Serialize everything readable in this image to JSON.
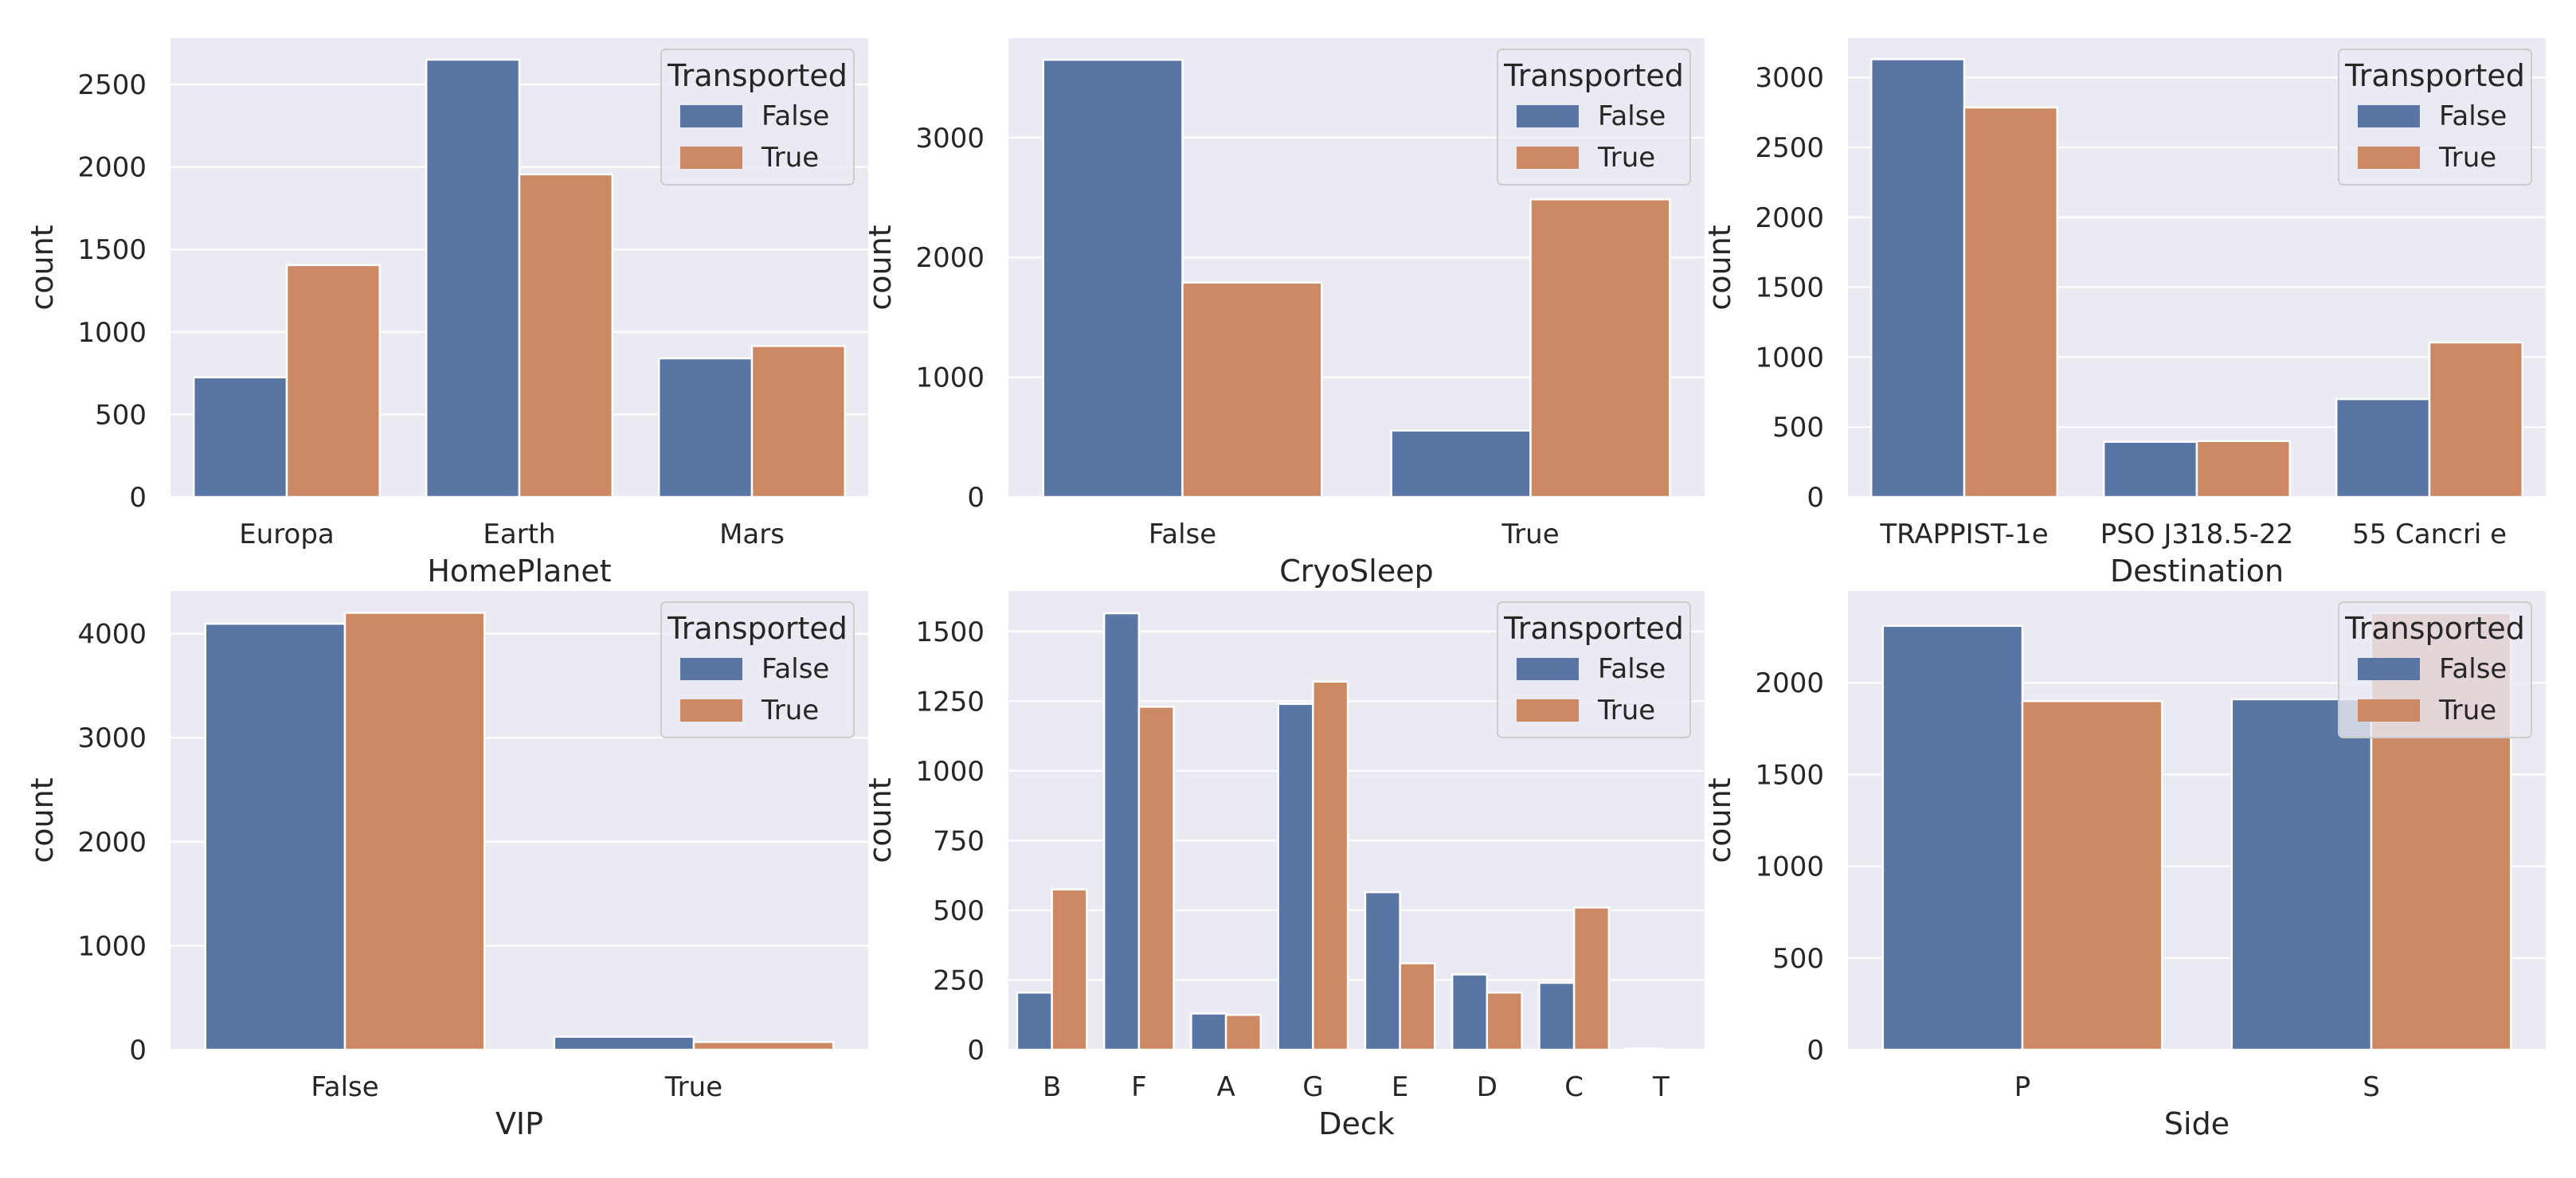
{
  "colors": {
    "background": "#eaeaf2",
    "grid": "#ffffff",
    "false_series": "#5975a4",
    "true_series": "#cc8963"
  },
  "chart_data": [
    {
      "type": "bar",
      "title": "",
      "xlabel": "HomePlanet",
      "ylabel": "count",
      "categories": [
        "Europa",
        "Earth",
        "Mars"
      ],
      "series": [
        {
          "name": "False",
          "values": [
            725,
            2650,
            840
          ]
        },
        {
          "name": "True",
          "values": [
            1405,
            1955,
            915
          ]
        }
      ],
      "ylim": [
        0,
        2780
      ],
      "yticks": [
        0,
        500,
        1000,
        1500,
        2000,
        2500
      ],
      "legend": {
        "title": "Transported",
        "position": "top-right"
      }
    },
    {
      "type": "bar",
      "title": "",
      "xlabel": "CryoSleep",
      "ylabel": "count",
      "categories": [
        "False",
        "True"
      ],
      "series": [
        {
          "name": "False",
          "values": [
            3650,
            555
          ]
        },
        {
          "name": "True",
          "values": [
            1790,
            2485
          ]
        }
      ],
      "ylim": [
        0,
        3830
      ],
      "yticks": [
        0,
        1000,
        2000,
        3000
      ],
      "legend": {
        "title": "Transported",
        "position": "top-right"
      }
    },
    {
      "type": "bar",
      "title": "",
      "xlabel": "Destination",
      "ylabel": "count",
      "categories": [
        "TRAPPIST-1e",
        "PSO J318.5-22",
        "55 Cancri e"
      ],
      "series": [
        {
          "name": "False",
          "values": [
            3130,
            395,
            700
          ]
        },
        {
          "name": "True",
          "values": [
            2785,
            400,
            1105
          ]
        }
      ],
      "ylim": [
        0,
        3280
      ],
      "yticks": [
        0,
        500,
        1000,
        1500,
        2000,
        2500,
        3000
      ],
      "legend": {
        "title": "Transported",
        "position": "top-right"
      }
    },
    {
      "type": "bar",
      "title": "",
      "xlabel": "VIP",
      "ylabel": "count",
      "categories": [
        "False",
        "True"
      ],
      "series": [
        {
          "name": "False",
          "values": [
            4095,
            125
          ]
        },
        {
          "name": "True",
          "values": [
            4200,
            75
          ]
        }
      ],
      "ylim": [
        0,
        4410
      ],
      "yticks": [
        0,
        1000,
        2000,
        3000,
        4000
      ],
      "legend": {
        "title": "Transported",
        "position": "top-right"
      }
    },
    {
      "type": "bar",
      "title": "",
      "xlabel": "Deck",
      "ylabel": "count",
      "categories": [
        "B",
        "F",
        "A",
        "G",
        "E",
        "D",
        "C",
        "T"
      ],
      "series": [
        {
          "name": "False",
          "values": [
            205,
            1565,
            130,
            1240,
            565,
            270,
            240,
            4
          ]
        },
        {
          "name": "True",
          "values": [
            575,
            1230,
            125,
            1320,
            310,
            205,
            510,
            1
          ]
        }
      ],
      "ylim": [
        0,
        1645
      ],
      "yticks": [
        0,
        250,
        500,
        750,
        1000,
        1250,
        1500
      ],
      "legend": {
        "title": "Transported",
        "position": "top-right"
      }
    },
    {
      "type": "bar",
      "title": "",
      "xlabel": "Side",
      "ylabel": "count",
      "categories": [
        "P",
        "S"
      ],
      "series": [
        {
          "name": "False",
          "values": [
            2310,
            1910
          ]
        },
        {
          "name": "True",
          "values": [
            1900,
            2380
          ]
        }
      ],
      "ylim": [
        0,
        2500
      ],
      "yticks": [
        0,
        500,
        1000,
        1500,
        2000
      ],
      "legend": {
        "title": "Transported",
        "position": "top-right"
      }
    }
  ]
}
